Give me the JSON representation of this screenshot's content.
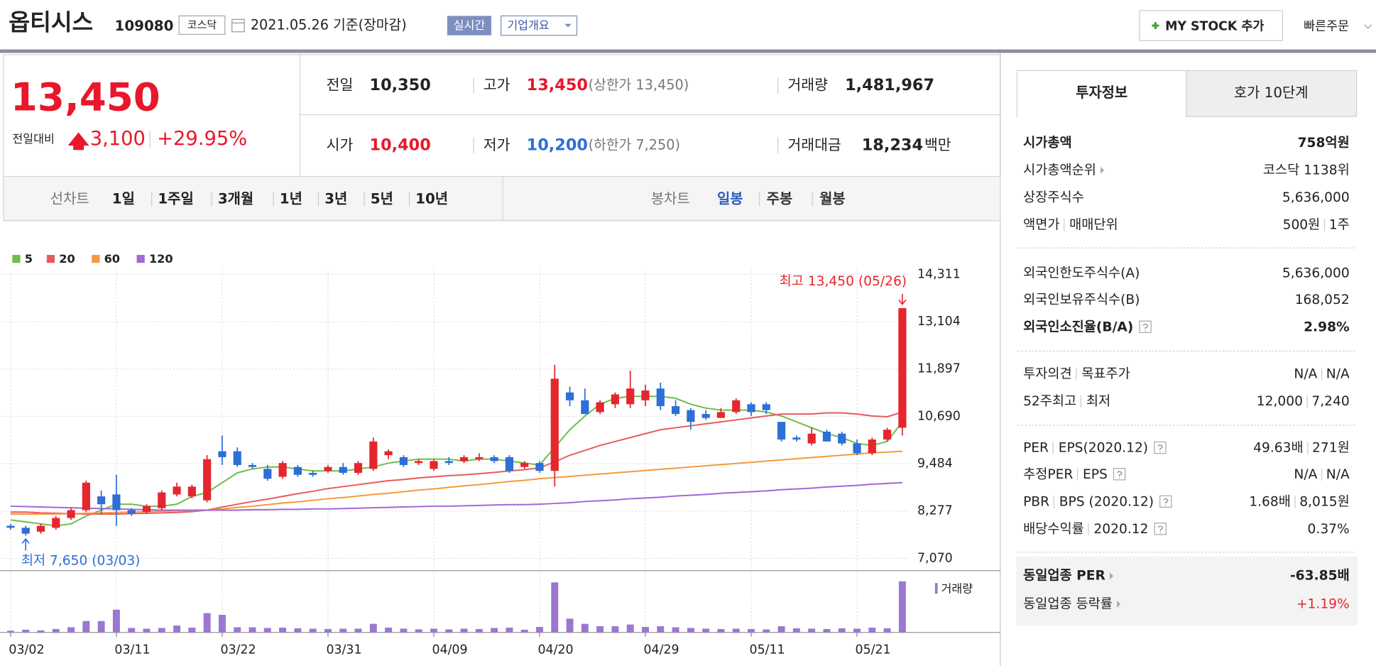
{
  "header": {
    "name": "옵티시스",
    "code": "109080",
    "market": "코스닥",
    "date": "2021.05.26 기준(장마감)",
    "realtime": "실시간",
    "company_info": "기업개요",
    "my_stock": "MY STOCK 추가",
    "quick_order": "빠른주문"
  },
  "price": {
    "current": "13,450",
    "change_label": "전일대비",
    "change": "3,100",
    "change_rate": "+29.95%"
  },
  "stats": [
    {
      "label": "전일",
      "value": "10,350"
    },
    {
      "label": "고가",
      "value": "13,450",
      "note": "(상한가 13,450)"
    },
    {
      "label": "거래량",
      "value": "1,481,967"
    },
    {
      "label": "시가",
      "value": "10,400"
    },
    {
      "label": "저가",
      "value": "10,200",
      "note": "(하한가 7,250)"
    },
    {
      "label": "거래대금",
      "value": "18,234",
      "unit": "백만"
    }
  ],
  "period_tabs": {
    "line_label": "선차트",
    "line": [
      "1일",
      "1주일",
      "3개월",
      "1년",
      "3년",
      "5년",
      "10년"
    ],
    "candle_label": "봉차트",
    "candle": [
      "일봉",
      "주봉",
      "월봉"
    ]
  },
  "chart_data": {
    "type": "candlestick",
    "categories": [
      "03/02",
      null,
      null,
      null,
      null,
      null,
      null,
      "03/11",
      null,
      null,
      null,
      null,
      null,
      null,
      "03/22",
      null,
      null,
      null,
      null,
      null,
      null,
      "03/31",
      null,
      null,
      null,
      null,
      null,
      null,
      "04/09",
      null,
      null,
      null,
      null,
      null,
      null,
      "04/20",
      null,
      null,
      null,
      null,
      null,
      null,
      "04/29",
      null,
      null,
      null,
      null,
      null,
      null,
      "05/11",
      null,
      null,
      null,
      null,
      null,
      null,
      "05/21",
      null,
      null,
      null
    ],
    "open": [
      7900,
      7850,
      7750,
      7850,
      8100,
      8300,
      8650,
      8700,
      8300,
      8250,
      8350,
      8700,
      8650,
      8550,
      9800,
      9800,
      9450,
      9350,
      9150,
      9400,
      9250,
      9300,
      9400,
      9250,
      9350,
      9700,
      9650,
      9500,
      9350,
      9550,
      9550,
      9600,
      9650,
      9650,
      9400,
      9500,
      9300,
      11300,
      11100,
      10800,
      11000,
      11000,
      11100,
      11400,
      10950,
      10850,
      10750,
      10650,
      10800,
      11000,
      11000,
      10550,
      10150,
      10000,
      10300,
      10250,
      10000,
      9750,
      10100,
      10400
    ],
    "high": [
      7950,
      7900,
      7950,
      8150,
      8350,
      9050,
      8800,
      9200,
      8350,
      8450,
      8800,
      9000,
      8950,
      9700,
      10200,
      9900,
      9500,
      9450,
      9550,
      9450,
      9300,
      9450,
      9500,
      9550,
      10150,
      9850,
      9700,
      9600,
      9600,
      9650,
      9700,
      9750,
      9700,
      9700,
      9550,
      9550,
      12000,
      11450,
      11400,
      11100,
      11300,
      11850,
      11500,
      11550,
      11100,
      10900,
      10850,
      10900,
      11150,
      11050,
      11050,
      10550,
      10200,
      10400,
      10350,
      10300,
      10100,
      10150,
      10400,
      13450
    ],
    "low": [
      7800,
      7650,
      7700,
      7800,
      8050,
      8250,
      8200,
      7900,
      8150,
      8200,
      8300,
      8650,
      8600,
      8500,
      9450,
      9400,
      9350,
      9050,
      9100,
      9150,
      9150,
      9250,
      9200,
      9200,
      9300,
      9600,
      9400,
      9450,
      9300,
      9450,
      9500,
      9550,
      9500,
      9250,
      9350,
      9250,
      8900,
      10950,
      10750,
      10750,
      10900,
      10900,
      10950,
      10850,
      10700,
      10350,
      10600,
      10650,
      10750,
      10700,
      10750,
      10050,
      10050,
      9950,
      10050,
      9950,
      9700,
      9700,
      10050,
      10200
    ],
    "close": [
      7850,
      7700,
      7900,
      8100,
      8300,
      9000,
      8450,
      8300,
      8200,
      8400,
      8750,
      8900,
      8900,
      9600,
      9650,
      9450,
      9400,
      9100,
      9500,
      9200,
      9200,
      9400,
      9250,
      9500,
      10050,
      9800,
      9450,
      9550,
      9550,
      9500,
      9650,
      9650,
      9550,
      9300,
      9500,
      9300,
      11650,
      11100,
      10750,
      11050,
      11250,
      11400,
      11350,
      10950,
      10750,
      10550,
      10650,
      10800,
      11100,
      10800,
      10850,
      10100,
      10100,
      10250,
      10050,
      10000,
      9750,
      10100,
      10350,
      13450
    ],
    "volume": [
      50000,
      80000,
      60000,
      100000,
      150000,
      330000,
      330000,
      660000,
      130000,
      110000,
      130000,
      200000,
      140000,
      560000,
      510000,
      150000,
      150000,
      130000,
      140000,
      120000,
      110000,
      100000,
      110000,
      110000,
      250000,
      140000,
      110000,
      90000,
      110000,
      90000,
      110000,
      100000,
      130000,
      140000,
      80000,
      160000,
      1450000,
      400000,
      250000,
      180000,
      180000,
      230000,
      160000,
      180000,
      150000,
      130000,
      110000,
      100000,
      110000,
      100000,
      90000,
      180000,
      120000,
      110000,
      100000,
      120000,
      110000,
      140000,
      120000,
      1481967
    ],
    "up_color": "#e5262e",
    "down_color": "#2e6fd6",
    "volume_color": "#9b77d0",
    "volume_label": "거래량",
    "series": [
      {
        "name": "5",
        "color": "#6cbf4a",
        "values": [
          8050,
          8000,
          7950,
          7900,
          7950,
          8150,
          8300,
          8450,
          8450,
          8400,
          8400,
          8450,
          8650,
          8750,
          9000,
          9250,
          9350,
          9400,
          9400,
          9350,
          9300,
          9300,
          9300,
          9350,
          9400,
          9500,
          9550,
          9600,
          9600,
          9600,
          9550,
          9600,
          9600,
          9550,
          9500,
          9450,
          9900,
          10350,
          10700,
          11000,
          11150,
          11200,
          11200,
          11200,
          11150,
          11000,
          10900,
          10850,
          10850,
          10850,
          10800,
          10700,
          10550,
          10400,
          10250,
          10150,
          10000,
          9950,
          10050,
          10550
        ]
      },
      {
        "name": "20",
        "color": "#e85b5b",
        "values": [
          8250,
          8250,
          8230,
          8220,
          8210,
          8200,
          8200,
          8200,
          8210,
          8220,
          8230,
          8240,
          8260,
          8300,
          8380,
          8450,
          8520,
          8580,
          8650,
          8720,
          8780,
          8850,
          8900,
          8950,
          9000,
          9050,
          9080,
          9120,
          9150,
          9180,
          9200,
          9230,
          9260,
          9300,
          9330,
          9380,
          9530,
          9700,
          9820,
          9950,
          10050,
          10150,
          10250,
          10350,
          10400,
          10450,
          10500,
          10550,
          10600,
          10650,
          10700,
          10750,
          10750,
          10750,
          10780,
          10780,
          10750,
          10700,
          10680,
          10800
        ]
      },
      {
        "name": "60",
        "color": "#f39a3c",
        "values": [
          8200,
          8200,
          8200,
          8200,
          8210,
          8220,
          8230,
          8240,
          8250,
          8260,
          8270,
          8280,
          8290,
          8300,
          8330,
          8370,
          8400,
          8440,
          8480,
          8510,
          8550,
          8590,
          8620,
          8660,
          8700,
          8730,
          8770,
          8810,
          8840,
          8880,
          8920,
          8950,
          8990,
          9030,
          9060,
          9100,
          9130,
          9160,
          9190,
          9220,
          9250,
          9280,
          9310,
          9340,
          9370,
          9400,
          9430,
          9460,
          9490,
          9520,
          9550,
          9580,
          9610,
          9640,
          9670,
          9700,
          9730,
          9760,
          9780,
          9800
        ]
      },
      {
        "name": "120",
        "color": "#a268d6",
        "values": [
          8400,
          8390,
          8380,
          8370,
          8360,
          8350,
          8340,
          8330,
          8320,
          8310,
          8300,
          8300,
          8300,
          8300,
          8300,
          8300,
          8310,
          8310,
          8320,
          8320,
          8330,
          8330,
          8340,
          8350,
          8360,
          8370,
          8380,
          8390,
          8400,
          8400,
          8410,
          8420,
          8430,
          8440,
          8440,
          8450,
          8470,
          8490,
          8520,
          8540,
          8560,
          8590,
          8610,
          8630,
          8660,
          8680,
          8700,
          8730,
          8750,
          8770,
          8790,
          8820,
          8840,
          8860,
          8890,
          8910,
          8930,
          8960,
          8980,
          9000
        ]
      }
    ],
    "ylim": [
      7070,
      14311
    ],
    "yticks": [
      {
        "value": 7070,
        "label": "7,070"
      },
      {
        "value": 8277,
        "label": "8,277"
      },
      {
        "value": 9484,
        "label": "9,484"
      },
      {
        "value": 10690,
        "label": "10,690"
      },
      {
        "value": 11897,
        "label": "11,897"
      },
      {
        "value": 13104,
        "label": "13,104"
      },
      {
        "value": 14311,
        "label": "14,311"
      }
    ],
    "grid": true,
    "high_label": "최고 13,450 (05/26)",
    "low_label": "최저 7,650 (03/03)"
  },
  "investment": {
    "tabs": [
      "투자정보",
      "호가 10단계"
    ],
    "groups": [
      [
        {
          "label": [
            "시가총액"
          ],
          "value": [
            "758억원"
          ]
        },
        {
          "label": [
            "시가총액순위"
          ],
          "value": [
            "코스닥 1138위"
          ]
        },
        {
          "label": [
            "상장주식수"
          ],
          "value": [
            "5,636,000"
          ]
        },
        {
          "label": [
            "액면가",
            "매매단위"
          ],
          "value": [
            "500원",
            "1주"
          ]
        }
      ],
      [
        {
          "label": [
            "외국인한도주식수(A)"
          ],
          "value": [
            "5,636,000"
          ]
        },
        {
          "label": [
            "외국인보유주식수(B)"
          ],
          "value": [
            "168,052"
          ]
        },
        {
          "label": [
            "외국인소진율(B/A)"
          ],
          "value": [
            "2.98%"
          ]
        }
      ],
      [
        {
          "label": [
            "투자의견",
            "목표주가"
          ],
          "value": [
            "N/A",
            "N/A"
          ]
        },
        {
          "label": [
            "52주최고",
            "최저"
          ],
          "value": [
            "12,000",
            "7,240"
          ]
        }
      ],
      [
        {
          "label": [
            "PER",
            "EPS(2020.12)"
          ],
          "value": [
            "49.63배",
            "271원"
          ]
        },
        {
          "label": [
            "추정PER",
            "EPS"
          ],
          "value": [
            "N/A",
            "N/A"
          ]
        },
        {
          "label": [
            "PBR",
            "BPS (2020.12)"
          ],
          "value": [
            "1.68배",
            "8,015원"
          ]
        },
        {
          "label": [
            "배당수익률",
            "2020.12"
          ],
          "value": [
            "0.37%"
          ]
        }
      ],
      [
        {
          "label": [
            "동일업종 PER"
          ],
          "value": [
            "-63.85배"
          ]
        },
        {
          "label": [
            "동일업종 등락률"
          ],
          "value": [
            "+1.19%"
          ]
        }
      ]
    ]
  }
}
